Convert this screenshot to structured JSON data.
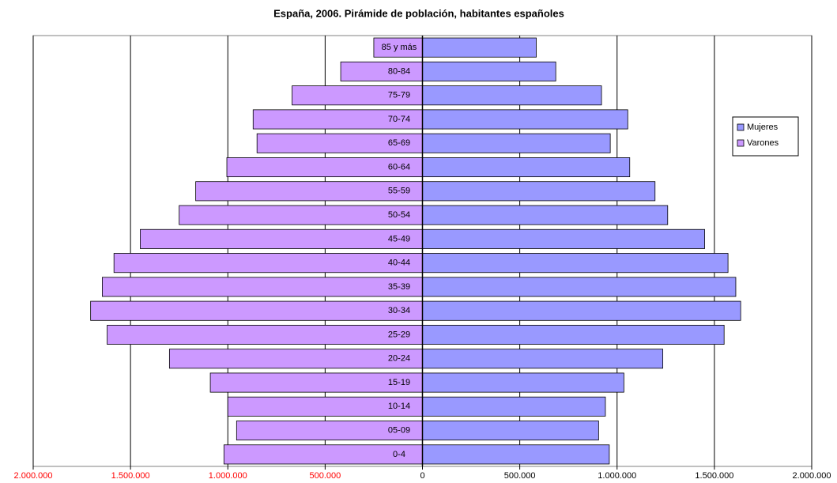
{
  "chart_data": {
    "type": "pyramid",
    "title": "España, 2006. Pirámide de población, habitantes españoles",
    "categories": [
      "0-4",
      "05-09",
      "10-14",
      "15-19",
      "20-24",
      "25-29",
      "30-34",
      "35-39",
      "40-44",
      "45-49",
      "50-54",
      "55-59",
      "60-64",
      "65-69",
      "70-74",
      "75-79",
      "80-84",
      "85 y más"
    ],
    "series": [
      {
        "name": "Mujeres",
        "color": "#9999ff",
        "values": [
          960000,
          905000,
          940000,
          1035000,
          1235000,
          1550000,
          1635000,
          1610000,
          1570000,
          1450000,
          1260000,
          1195000,
          1065000,
          965000,
          1055000,
          920000,
          685000,
          585000
        ]
      },
      {
        "name": "Varones",
        "color": "#cc99ff",
        "values": [
          -1020000,
          -955000,
          -1000000,
          -1090000,
          -1300000,
          -1620000,
          -1705000,
          -1645000,
          -1585000,
          -1450000,
          -1250000,
          -1165000,
          -1005000,
          -850000,
          -870000,
          -670000,
          -420000,
          -250000
        ]
      }
    ],
    "xlim": [
      -2000000,
      2000000
    ],
    "xticks": [
      {
        "value": -2000000,
        "label": "2.000.000"
      },
      {
        "value": -1500000,
        "label": "1.500.000"
      },
      {
        "value": -1000000,
        "label": "1.000.000"
      },
      {
        "value": -500000,
        "label": "500.000"
      },
      0,
      {
        "value": 500000,
        "label": "500.000"
      },
      {
        "value": 1000000,
        "label": "1.000.000"
      },
      {
        "value": 1500000,
        "label": "1.500.000"
      },
      {
        "value": 2000000,
        "label": "2.000.000"
      }
    ],
    "negative_tick_color": "#ff0000",
    "grid": true,
    "legend": "right"
  }
}
